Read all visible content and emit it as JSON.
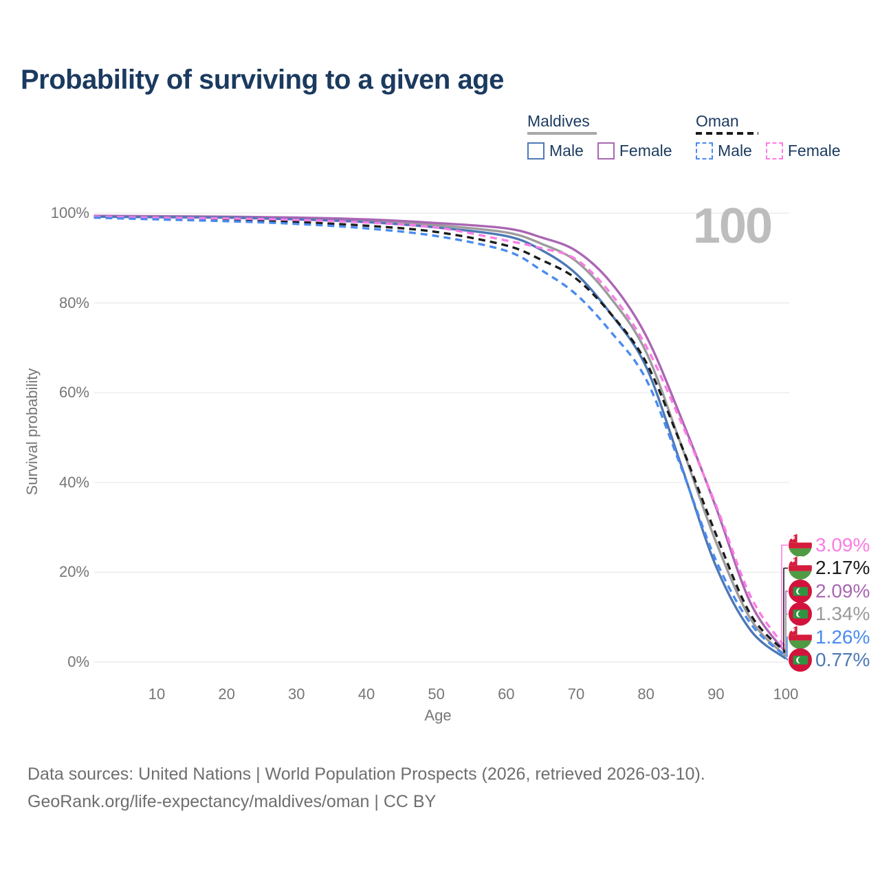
{
  "title": "Probability of surviving to a given age",
  "hover_age": "100",
  "legend": {
    "groups": [
      {
        "name": "Maldives",
        "underline_style": "solid",
        "underline_color": "#a8a8a8",
        "items": [
          {
            "label": "Male",
            "color": "#4c78b5",
            "dashed": false
          },
          {
            "label": "Female",
            "color": "#aa66b3",
            "dashed": false
          }
        ]
      },
      {
        "name": "Oman",
        "underline_style": "dashed",
        "underline_color": "#1a1a1a",
        "items": [
          {
            "label": "Male",
            "color": "#4a8bf0",
            "dashed": true
          },
          {
            "label": "Female",
            "color": "#fb7ce4",
            "dashed": true
          }
        ]
      }
    ]
  },
  "axes": {
    "x_title": "Age",
    "y_title": "Survival probability",
    "x_tick_values": [
      10,
      20,
      30,
      40,
      50,
      60,
      70,
      80,
      90,
      100
    ],
    "y_tick_values": [
      0,
      20,
      40,
      60,
      80,
      100
    ],
    "y_tick_labels": [
      "0%",
      "20%",
      "40%",
      "60%",
      "80%",
      "100%"
    ]
  },
  "end_labels": [
    {
      "text": "3.09%",
      "series": "oman_female",
      "flag": "oman",
      "color": "#fb7ce4"
    },
    {
      "text": "2.17%",
      "series": "oman_total",
      "flag": "oman",
      "color": "#1c1c1c"
    },
    {
      "text": "2.09%",
      "series": "maldives_female",
      "flag": "maldives",
      "color": "#aa66b3"
    },
    {
      "text": "1.34%",
      "series": "maldives_total",
      "flag": "maldives",
      "color": "#9b9b9b"
    },
    {
      "text": "1.26%",
      "series": "oman_male",
      "flag": "oman",
      "color": "#4a8bf0"
    },
    {
      "text": "0.77%",
      "series": "maldives_male",
      "flag": "maldives",
      "color": "#4c78b5"
    }
  ],
  "footer": {
    "line1": "Data sources: United Nations | World Population Prospects (2026, retrieved 2026-03-10).",
    "line2": "GeoRank.org/life-expectancy/maldives/oman | CC BY"
  },
  "chart_data": {
    "type": "line",
    "title": "Probability of surviving to a given age",
    "xlabel": "Age",
    "ylabel": "Survival probability",
    "xlim": [
      1,
      100
    ],
    "ylim": [
      0,
      100
    ],
    "grid": "horizontal",
    "legend_position": "top-right",
    "hover_x": 100,
    "ages": [
      1,
      10,
      20,
      30,
      40,
      50,
      60,
      65,
      70,
      75,
      80,
      85,
      90,
      95,
      100
    ],
    "series": [
      {
        "id": "maldives_total",
        "name": "Maldives (both sexes)",
        "country": "Maldives",
        "sex": "Total",
        "style": "solid",
        "color": "#9b9b9b",
        "end_value_pct": 1.34,
        "values": [
          99.3,
          99.2,
          99.1,
          98.8,
          98.3,
          97.3,
          95.7,
          93.2,
          89.3,
          81.0,
          69.1,
          48.5,
          26.8,
          9.5,
          1.34
        ]
      },
      {
        "id": "maldives_female",
        "name": "Maldives Female",
        "country": "Maldives",
        "sex": "Female",
        "style": "solid",
        "color": "#aa66b3",
        "end_value_pct": 2.09,
        "values": [
          99.4,
          99.3,
          99.2,
          99.0,
          98.6,
          97.8,
          96.6,
          94.6,
          91.6,
          84.5,
          72.7,
          54.5,
          34.5,
          13.0,
          2.09
        ]
      },
      {
        "id": "maldives_male",
        "name": "Maldives Male",
        "country": "Maldives",
        "sex": "Male",
        "style": "solid",
        "color": "#4c78b5",
        "end_value_pct": 0.77,
        "values": [
          99.2,
          99.1,
          99.0,
          98.6,
          98.0,
          96.8,
          94.9,
          91.8,
          86.5,
          77.5,
          65.8,
          44.0,
          21.4,
          7.0,
          0.77
        ]
      },
      {
        "id": "oman_total",
        "name": "Oman (both sexes)",
        "country": "Oman",
        "sex": "Total",
        "style": "dashed",
        "color": "#1c1c1c",
        "end_value_pct": 2.17,
        "values": [
          99.1,
          98.8,
          98.5,
          98.0,
          97.2,
          95.8,
          92.8,
          89.6,
          85.4,
          77.5,
          66.8,
          48.5,
          28.5,
          10.5,
          2.17
        ]
      },
      {
        "id": "oman_female",
        "name": "Oman Female",
        "country": "Oman",
        "sex": "Female",
        "style": "dashed",
        "color": "#fb7ce4",
        "end_value_pct": 3.09,
        "values": [
          99.2,
          99.0,
          98.8,
          98.5,
          97.9,
          96.8,
          93.9,
          92.2,
          89.7,
          82.0,
          70.4,
          53.5,
          35.0,
          14.5,
          3.09
        ]
      },
      {
        "id": "oman_male",
        "name": "Oman Male",
        "country": "Oman",
        "sex": "Male",
        "style": "dashed",
        "color": "#4a8bf0",
        "end_value_pct": 1.26,
        "values": [
          99.0,
          98.6,
          98.2,
          97.6,
          96.6,
          94.9,
          91.6,
          87.3,
          81.9,
          73.5,
          63.0,
          43.5,
          22.7,
          8.5,
          1.26
        ]
      }
    ]
  }
}
